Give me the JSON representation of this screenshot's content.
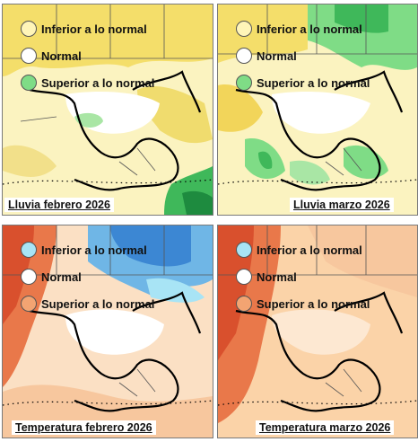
{
  "panels": [
    {
      "id": "p1",
      "caption": "Lluvia febrero 2026",
      "legend": [
        {
          "label": "Inferior a lo normal",
          "color": "#fff5b8"
        },
        {
          "label": "Normal",
          "color": "#ffffff"
        },
        {
          "label": "Superior a lo normal",
          "color": "#7fdc86"
        }
      ]
    },
    {
      "id": "p2",
      "caption": "Lluvia marzo 2026",
      "legend": [
        {
          "label": "Inferior a lo normal",
          "color": "#fff5b8"
        },
        {
          "label": "Normal",
          "color": "#ffffff"
        },
        {
          "label": "Superior a lo normal",
          "color": "#7fdc86"
        }
      ]
    },
    {
      "id": "p3",
      "caption": "Temperatura febrero 2026",
      "legend": [
        {
          "label": "Inferior a lo normal",
          "color": "#a8e4f5"
        },
        {
          "label": "Normal",
          "color": "#ffffff"
        },
        {
          "label": "Superior a lo normal",
          "color": "#f3a472"
        }
      ]
    },
    {
      "id": "p4",
      "caption": "Temperatura marzo 2026",
      "legend": [
        {
          "label": "Inferior a lo normal",
          "color": "#a8e4f5"
        },
        {
          "label": "Normal",
          "color": "#ffffff"
        },
        {
          "label": "Superior a lo normal",
          "color": "#f3a472"
        }
      ]
    }
  ]
}
